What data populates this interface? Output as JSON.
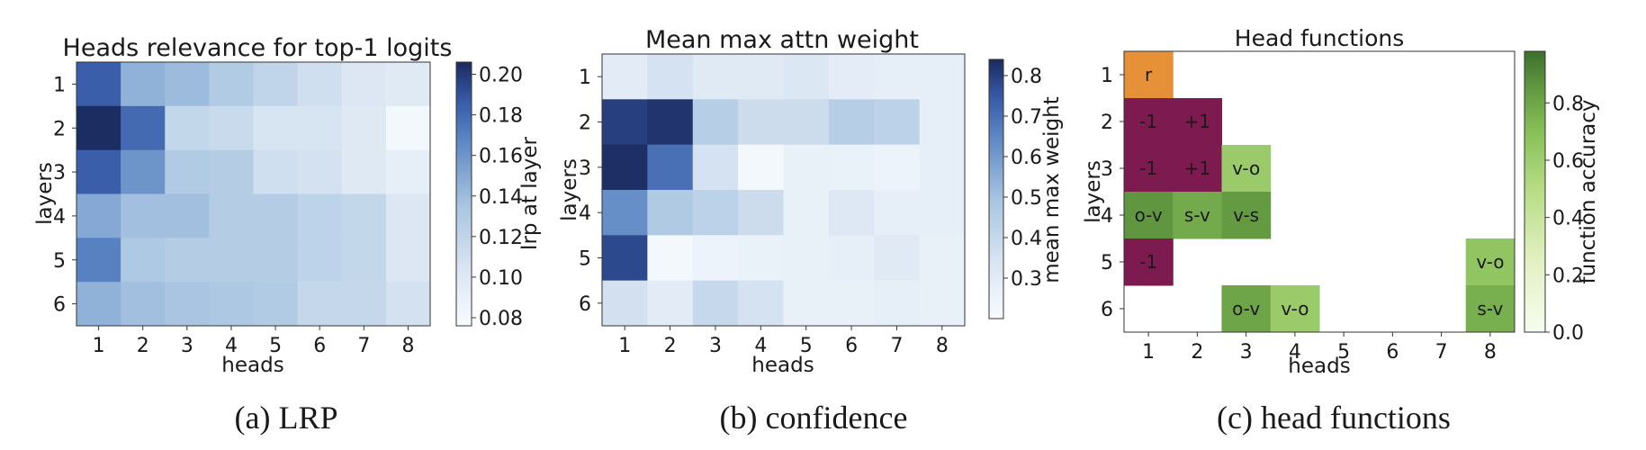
{
  "colors": {
    "blues_low": "#f7fbff",
    "blues_high": "#1b2a5e",
    "green_low": "#f7fcf0",
    "green_high": "#3c6f2c",
    "role_r": "#e69138",
    "role_pos": "#7d1b50"
  },
  "chart_data": [
    {
      "type": "heatmap",
      "title": "Heads relevance for top-1 logits",
      "xlabel": "heads",
      "ylabel": "layers",
      "caption": "(a) LRP",
      "x": [
        1,
        2,
        3,
        4,
        5,
        6,
        7,
        8
      ],
      "y": [
        1,
        2,
        3,
        4,
        5,
        6
      ],
      "values": [
        [
          0.185,
          0.145,
          0.14,
          0.13,
          0.12,
          0.11,
          0.102,
          0.098
        ],
        [
          0.205,
          0.18,
          0.118,
          0.115,
          0.105,
          0.105,
          0.1,
          0.08
        ],
        [
          0.185,
          0.16,
          0.13,
          0.128,
          0.11,
          0.108,
          0.1,
          0.092
        ],
        [
          0.15,
          0.138,
          0.138,
          0.128,
          0.128,
          0.122,
          0.118,
          0.102
        ],
        [
          0.17,
          0.132,
          0.128,
          0.128,
          0.128,
          0.122,
          0.118,
          0.102
        ],
        [
          0.145,
          0.138,
          0.135,
          0.133,
          0.13,
          0.117,
          0.117,
          0.108
        ]
      ],
      "colorbar": {
        "label": "lrp at layer",
        "vmin": 0.076,
        "vmax": 0.206,
        "ticks": [
          "0.08",
          "0.10",
          "0.12",
          "0.14",
          "0.16",
          "0.18",
          "0.20"
        ],
        "tick_values": [
          0.08,
          0.1,
          0.12,
          0.14,
          0.16,
          0.18,
          0.2
        ]
      }
    },
    {
      "type": "heatmap",
      "title": "Mean max attn weight",
      "xlabel": "heads",
      "ylabel": "layers",
      "caption": "(b) confidence",
      "x": [
        1,
        2,
        3,
        4,
        5,
        6,
        7,
        8
      ],
      "y": [
        1,
        2,
        3,
        4,
        5,
        6
      ],
      "values": [
        [
          0.3,
          0.35,
          0.31,
          0.31,
          0.33,
          0.29,
          0.28,
          0.28
        ],
        [
          0.8,
          0.82,
          0.45,
          0.38,
          0.38,
          0.45,
          0.43,
          0.28
        ],
        [
          0.83,
          0.7,
          0.35,
          0.22,
          0.27,
          0.26,
          0.25,
          0.28
        ],
        [
          0.63,
          0.47,
          0.43,
          0.38,
          0.27,
          0.32,
          0.28,
          0.28
        ],
        [
          0.78,
          0.22,
          0.25,
          0.26,
          0.27,
          0.28,
          0.31,
          0.27
        ],
        [
          0.36,
          0.3,
          0.4,
          0.35,
          0.27,
          0.27,
          0.28,
          0.27
        ]
      ],
      "colorbar": {
        "label": "mean max weight",
        "vmin": 0.2,
        "vmax": 0.84,
        "ticks": [
          "0.3",
          "0.4",
          "0.5",
          "0.6",
          "0.7",
          "0.8"
        ],
        "tick_values": [
          0.3,
          0.4,
          0.5,
          0.6,
          0.7,
          0.8
        ]
      }
    },
    {
      "type": "heatmap",
      "title": "Head functions",
      "xlabel": "heads",
      "ylabel": "layers",
      "caption": "(c) head functions",
      "x": [
        1,
        2,
        3,
        4,
        5,
        6,
        7,
        8
      ],
      "y": [
        1,
        2,
        3,
        4,
        5,
        6
      ],
      "cells": [
        {
          "layer": 1,
          "head": 1,
          "label": "r",
          "kind": "role_r"
        },
        {
          "layer": 2,
          "head": 1,
          "label": "-1",
          "kind": "role_pos"
        },
        {
          "layer": 2,
          "head": 2,
          "label": "+1",
          "kind": "role_pos"
        },
        {
          "layer": 3,
          "head": 1,
          "label": "-1",
          "kind": "role_pos"
        },
        {
          "layer": 3,
          "head": 2,
          "label": "+1",
          "kind": "role_pos"
        },
        {
          "layer": 3,
          "head": 3,
          "label": "v-o",
          "kind": "syntax",
          "accuracy": 0.62
        },
        {
          "layer": 4,
          "head": 1,
          "label": "o-v",
          "kind": "syntax",
          "accuracy": 0.86
        },
        {
          "layer": 4,
          "head": 2,
          "label": "s-v",
          "kind": "syntax",
          "accuracy": 0.78
        },
        {
          "layer": 4,
          "head": 3,
          "label": "v-s",
          "kind": "syntax",
          "accuracy": 0.84
        },
        {
          "layer": 5,
          "head": 1,
          "label": "-1",
          "kind": "role_pos"
        },
        {
          "layer": 5,
          "head": 8,
          "label": "v-o",
          "kind": "syntax",
          "accuracy": 0.66
        },
        {
          "layer": 6,
          "head": 3,
          "label": "o-v",
          "kind": "syntax",
          "accuracy": 0.8
        },
        {
          "layer": 6,
          "head": 4,
          "label": "v-o",
          "kind": "syntax",
          "accuracy": 0.62
        },
        {
          "layer": 6,
          "head": 8,
          "label": "s-v",
          "kind": "syntax",
          "accuracy": 0.76
        }
      ],
      "colorbar": {
        "label": "function accuracy",
        "vmin": 0.0,
        "vmax": 0.98,
        "ticks": [
          "0.0",
          "0.2",
          "0.4",
          "0.6",
          "0.8"
        ],
        "tick_values": [
          0.0,
          0.2,
          0.4,
          0.6,
          0.8
        ]
      }
    }
  ]
}
